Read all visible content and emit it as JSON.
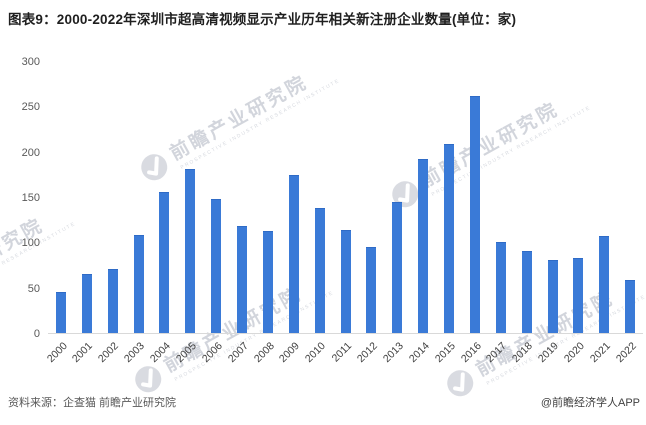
{
  "title": "图表9：2000-2022年深圳市超高清视频显示产业历年相关新注册企业数量(单位：家)",
  "chart_data": {
    "type": "bar",
    "title": "2000-2022年深圳市超高清视频显示产业历年相关新注册企业数量",
    "unit": "家",
    "categories": [
      "2000",
      "2001",
      "2002",
      "2003",
      "2004",
      "2005",
      "2006",
      "2007",
      "2008",
      "2009",
      "2010",
      "2011",
      "2012",
      "2013",
      "2014",
      "2015",
      "2016",
      "2017",
      "2018",
      "2019",
      "2020",
      "2021",
      "2022"
    ],
    "values": [
      45,
      65,
      71,
      108,
      155,
      181,
      148,
      118,
      112,
      174,
      138,
      114,
      95,
      145,
      192,
      209,
      261,
      100,
      91,
      81,
      83,
      107,
      59
    ],
    "xlabel": "",
    "ylabel": "",
    "ylim": [
      0,
      300
    ],
    "ytick_step": 50,
    "grid": false,
    "legend_position": "none",
    "bar_color": "#3a7ad7"
  },
  "watermark": {
    "text": "前瞻产业研究院",
    "subtext": "PROSPECTIVE INDUSTRY RESEARCH INSTITUTE"
  },
  "footer": {
    "source": "资料来源：企查猫 前瞻产业研究院",
    "credit": "@前瞻经济学人APP"
  }
}
